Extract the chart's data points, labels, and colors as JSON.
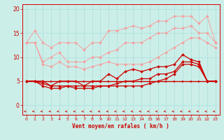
{
  "x": [
    0,
    1,
    2,
    3,
    4,
    5,
    6,
    7,
    8,
    9,
    10,
    11,
    12,
    13,
    14,
    15,
    16,
    17,
    18,
    19,
    20,
    21,
    22,
    23
  ],
  "series": {
    "light_pink_max": [
      13,
      15.5,
      13,
      12,
      13,
      13,
      13,
      11.5,
      13,
      13,
      15.5,
      15.5,
      16,
      16.5,
      16,
      16.5,
      17.5,
      17.5,
      18.5,
      18.5,
      18.5,
      17,
      18.5,
      13
    ],
    "light_pink_avg": [
      13,
      13,
      9,
      10,
      11,
      9,
      9,
      9,
      10,
      10,
      11,
      11.5,
      13,
      13,
      13,
      14,
      15,
      15,
      16,
      16,
      16.5,
      15,
      15,
      13
    ],
    "light_pink_min": [
      13,
      13,
      8.5,
      8,
      9,
      8,
      8,
      7.5,
      8,
      8.5,
      9,
      8.5,
      8.5,
      8.5,
      8.5,
      9,
      10,
      11,
      12,
      13,
      14,
      14,
      13,
      12
    ],
    "red_max": [
      5,
      5,
      5,
      4,
      5,
      5,
      5,
      4,
      5,
      5,
      6.5,
      5.5,
      7,
      7.5,
      7,
      7.5,
      8,
      8,
      8.5,
      10.5,
      9.5,
      9,
      5,
      5
    ],
    "red_avg": [
      5,
      5,
      4.5,
      4,
      4,
      4,
      4,
      4,
      4,
      4,
      4,
      4.5,
      5,
      5,
      5.5,
      5.5,
      6.5,
      6.5,
      7,
      9,
      9,
      8.5,
      5,
      5
    ],
    "red_min": [
      5,
      5,
      4,
      3.5,
      3.5,
      4,
      3.5,
      3.5,
      3.5,
      4,
      4,
      4,
      4,
      4,
      4,
      4.5,
      5,
      5.5,
      6.5,
      8.5,
      8.5,
      8,
      5,
      5
    ],
    "red_flat": [
      5,
      5,
      5,
      5,
      5,
      5,
      5,
      5,
      5,
      5,
      5,
      5,
      5,
      5,
      5,
      5,
      5,
      5,
      5,
      5,
      5,
      5,
      5,
      5
    ]
  },
  "colors": {
    "light_pink": "#f4a0a0",
    "red": "#cc0000"
  },
  "bg_color": "#cceee8",
  "grid_color": "#aadddd",
  "xlabel": "Vent moyen/en rafales ( km/h )",
  "ylim": [
    -2,
    21
  ],
  "xlim": [
    -0.5,
    23.5
  ],
  "yticks": [
    0,
    5,
    10,
    15,
    20
  ],
  "xticks": [
    0,
    1,
    2,
    3,
    4,
    5,
    6,
    7,
    8,
    9,
    10,
    11,
    12,
    13,
    14,
    15,
    16,
    17,
    18,
    19,
    20,
    21,
    22,
    23
  ]
}
